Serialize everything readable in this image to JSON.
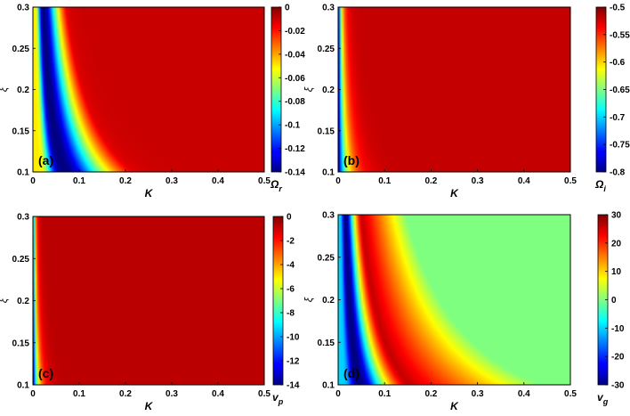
{
  "chart_data": [
    {
      "type": "heatmap",
      "panel_label": "(a)",
      "xlabel": "K",
      "ylabel": "ξ",
      "xlim": [
        0,
        0.5
      ],
      "ylim": [
        0.1,
        0.3
      ],
      "xticks": [
        "0",
        "0.1",
        "0.2",
        "0.3",
        "0.4",
        "0.5"
      ],
      "yticks": [
        "0.1",
        "0.15",
        "0.2",
        "0.25",
        "0.3"
      ],
      "colorbar_label": "Ω",
      "colorbar_label_sub": "r",
      "colorbar_range": [
        -0.14,
        0
      ],
      "colorbar_ticks": [
        "0",
        "-0.02",
        "-0.04",
        "-0.06",
        "-0.08",
        "-0.1",
        "-0.12",
        "-0.14"
      ],
      "colorscale": "jet",
      "field": "band",
      "band_c": 0.0065,
      "band_w": 0.45,
      "ridge_value": -0.14,
      "inner_value": -0.05,
      "outer_value": -0.01
    },
    {
      "type": "heatmap",
      "panel_label": "(b)",
      "xlabel": "K",
      "ylabel": "ξ",
      "xlim": [
        0,
        0.5
      ],
      "ylim": [
        0.1,
        0.3
      ],
      "xticks": [
        "0",
        "0.1",
        "0.2",
        "0.3",
        "0.4",
        "0.5"
      ],
      "yticks": [
        "0.1",
        "0.15",
        "0.2",
        "0.25",
        "0.3"
      ],
      "colorbar_label": "Ω",
      "colorbar_label_sub": "i",
      "colorbar_range": [
        -0.8,
        -0.5
      ],
      "colorbar_ticks": [
        "-0.5",
        "-0.55",
        "-0.6",
        "-0.65",
        "-0.7",
        "-0.75",
        "-0.8"
      ],
      "colorscale": "jet",
      "field": "decay",
      "decay_c": 0.0022,
      "low_value": -0.8,
      "high_value": -0.52
    },
    {
      "type": "heatmap",
      "panel_label": "(c)",
      "xlabel": "K",
      "ylabel": "ξ",
      "xlim": [
        0,
        0.5
      ],
      "ylim": [
        0.1,
        0.3
      ],
      "xticks": [
        "0",
        "0.1",
        "0.2",
        "0.3",
        "0.4",
        "0.5"
      ],
      "yticks": [
        "0.1",
        "0.15",
        "0.2",
        "0.25",
        "0.3"
      ],
      "colorbar_label": "v",
      "colorbar_label_sub": "p",
      "colorbar_range": [
        -14,
        0
      ],
      "colorbar_ticks": [
        "0",
        "-2",
        "-4",
        "-6",
        "-8",
        "-10",
        "-12",
        "-14"
      ],
      "colorscale": "jet",
      "field": "decay",
      "decay_c": 0.0012,
      "low_value": -14,
      "high_value": -0.8
    },
    {
      "type": "heatmap",
      "panel_label": "(d)",
      "xlabel": "K",
      "ylabel": "ξ",
      "xlim": [
        0,
        0.5
      ],
      "ylim": [
        0.1,
        0.3
      ],
      "xticks": [
        "0",
        "0.1",
        "0.2",
        "0.3",
        "0.4",
        "0.5"
      ],
      "yticks": [
        "0.1",
        "0.15",
        "0.2",
        "0.25",
        "0.3"
      ],
      "colorbar_label": "v",
      "colorbar_label_sub": "g",
      "colorbar_range": [
        -30,
        30
      ],
      "colorbar_ticks": [
        "30",
        "20",
        "10",
        "0",
        "-10",
        "-20",
        "-30"
      ],
      "colorscale": "jet",
      "field": "band",
      "band_c": 0.0045,
      "band_w": 0.4,
      "ridge_value": -30,
      "inner_value": -10,
      "outer_value": 28,
      "far_value": 0,
      "far_c": 0.03
    }
  ]
}
